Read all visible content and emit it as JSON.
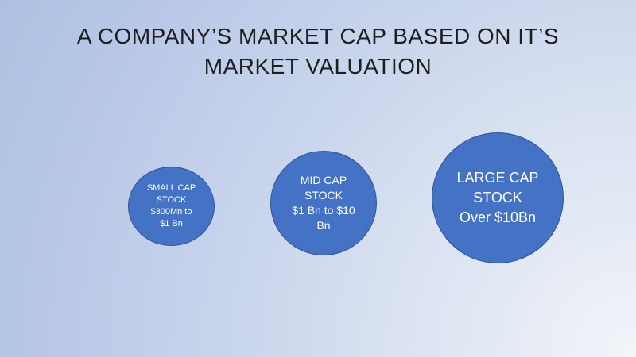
{
  "slide": {
    "title": "A COMPANY’S MARKET CAP BASED ON IT’S\nMARKET VALUATION",
    "title_color": "#1E1E1E",
    "background": {
      "type": "gradient",
      "inner_color": "#F2F5F9",
      "outer_color": "#AEBFE1"
    },
    "shapes": [
      {
        "name": "small-cap-circle",
        "label": "SMALL  CAP\nSTOCK\n$300Mn to\n$1 Bn",
        "fill": "#4472C4",
        "border": "#2F5597",
        "text_color": "#FFFFFF"
      },
      {
        "name": "mid-cap-circle",
        "label": "MID CAP\nSTOCK\n$1 Bn to $10\nBn",
        "fill": "#4472C4",
        "border": "#2F5597",
        "text_color": "#FFFFFF"
      },
      {
        "name": "large-cap-circle",
        "label": "LARGE CAP\nSTOCK\nOver $10Bn",
        "fill": "#4472C4",
        "border": "#2F5597",
        "text_color": "#FFFFFF"
      }
    ]
  }
}
